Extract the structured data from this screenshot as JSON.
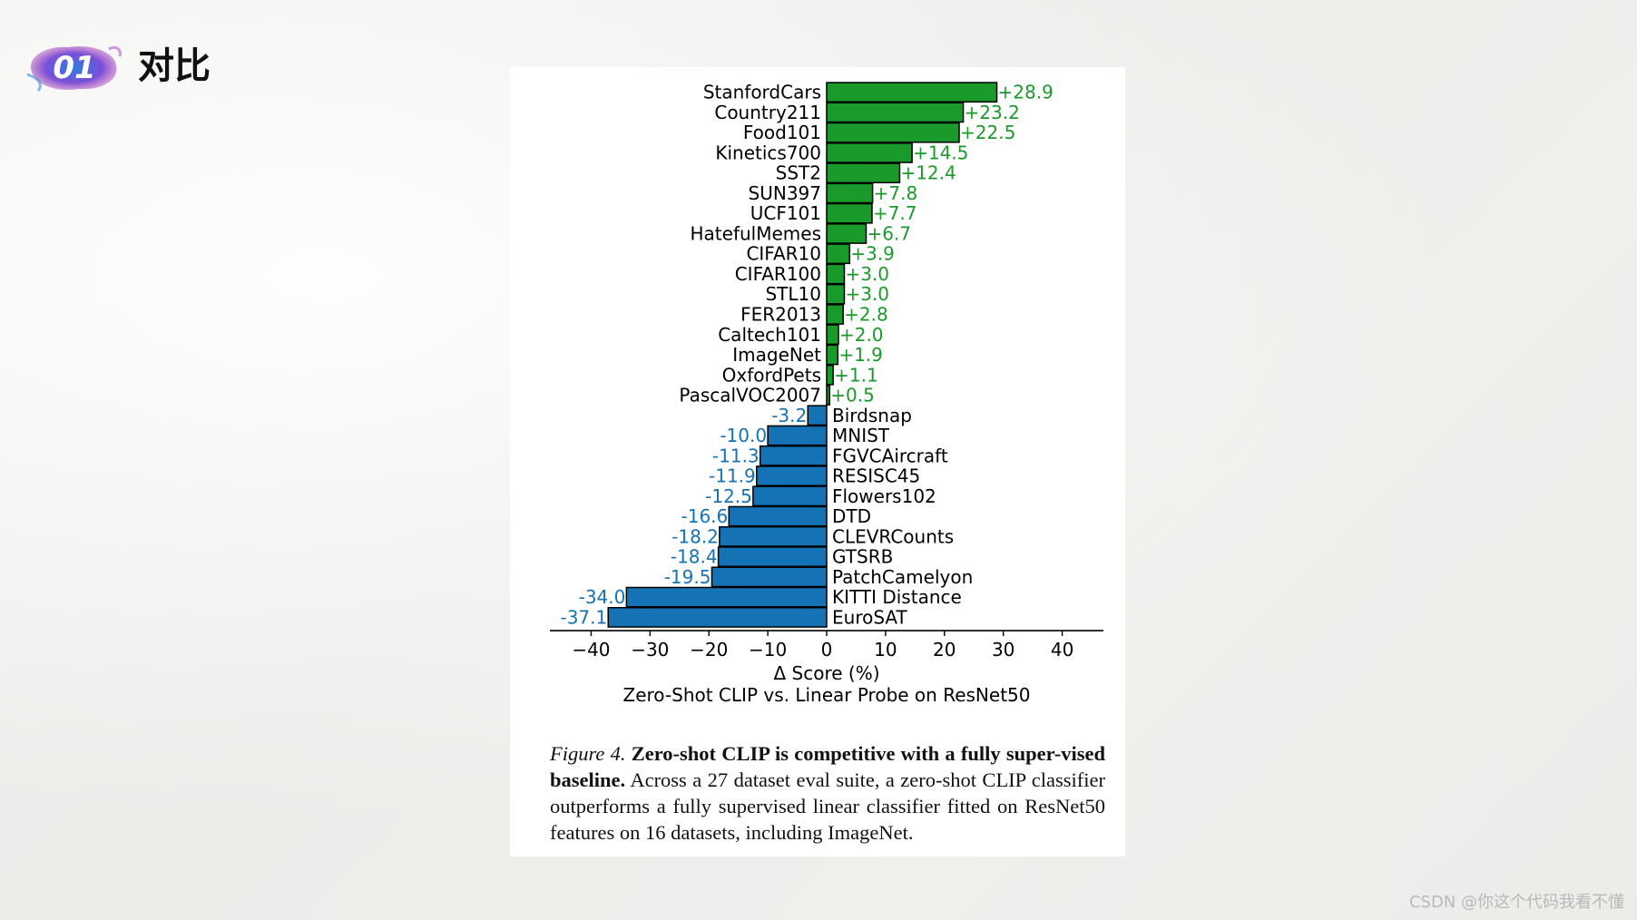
{
  "slide": {
    "badge_number": "01",
    "title": "对比"
  },
  "figure": {
    "caption_label": "Figure 4.",
    "caption_bold": "Zero-shot CLIP is competitive with a fully super-vised baseline.",
    "caption_text": "Across a 27 dataset eval suite, a zero-shot CLIP classifier outperforms a fully supervised linear classifier fitted on ResNet50 features on 16 datasets, including ImageNet."
  },
  "watermark": "CSDN @你这个代码我看不懂",
  "colors": {
    "positive": "#1a9a2a",
    "negative": "#1572b4",
    "positive_label": "#1a9a2a",
    "negative_label": "#1572b4"
  },
  "chart_data": {
    "type": "bar",
    "orientation": "horizontal",
    "categories": [
      "StanfordCars",
      "Country211",
      "Food101",
      "Kinetics700",
      "SST2",
      "SUN397",
      "UCF101",
      "HatefulMemes",
      "CIFAR10",
      "CIFAR100",
      "STL10",
      "FER2013",
      "Caltech101",
      "ImageNet",
      "OxfordPets",
      "PascalVOC2007",
      "Birdsnap",
      "MNIST",
      "FGVCAircraft",
      "RESISC45",
      "Flowers102",
      "DTD",
      "CLEVRCounts",
      "GTSRB",
      "PatchCamelyon",
      "KITTI Distance",
      "EuroSAT"
    ],
    "values": [
      28.9,
      23.2,
      22.5,
      14.5,
      12.4,
      7.8,
      7.7,
      6.7,
      3.9,
      3.0,
      3.0,
      2.8,
      2.0,
      1.9,
      1.1,
      0.5,
      -3.2,
      -10.0,
      -11.3,
      -11.9,
      -12.5,
      -16.6,
      -18.2,
      -18.4,
      -19.5,
      -34.0,
      -37.1
    ],
    "value_labels": [
      "+28.9",
      "+23.2",
      "+22.5",
      "+14.5",
      "+12.4",
      "+7.8",
      "+7.7",
      "+6.7",
      "+3.9",
      "+3.0",
      "+3.0",
      "+2.8",
      "+2.0",
      "+1.9",
      "+1.1",
      "+0.5",
      "-3.2",
      "-10.0",
      "-11.3",
      "-11.9",
      "-12.5",
      "-16.6",
      "-18.2",
      "-18.4",
      "-19.5",
      "-34.0",
      "-37.1"
    ],
    "xlim": [
      -47,
      47
    ],
    "xticks": [
      -40,
      -30,
      -20,
      -10,
      0,
      10,
      20,
      30,
      40
    ],
    "xtick_labels": [
      "−40",
      "−30",
      "−20",
      "−10",
      "0",
      "10",
      "20",
      "30",
      "40"
    ],
    "xlabel": "Δ Score (%)",
    "title": "Zero-Shot CLIP vs. Linear Probe on ResNet50",
    "grid": false
  }
}
